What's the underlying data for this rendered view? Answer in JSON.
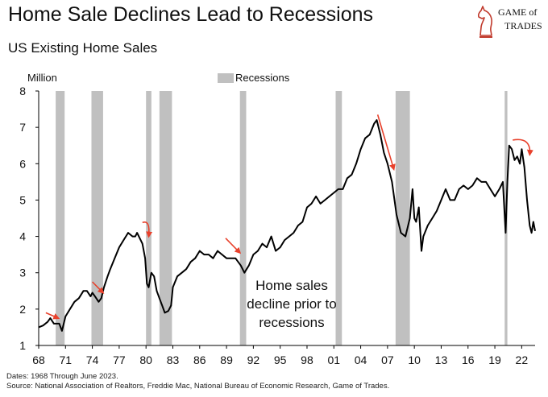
{
  "header": {
    "title": "Home Sale Declines Lead to Recessions",
    "subtitle": "US Existing Home Sales",
    "brand_line1": "GAME of",
    "brand_line2": "TRADES"
  },
  "footer": {
    "dates": "Dates: 1968 Through June 2023.",
    "source": "Source: National Association of Realtors, Freddie Mac, National Bureau of Economic Research, Game of Trades."
  },
  "colors": {
    "line": "#000000",
    "recession": "#c0c0c0",
    "arrow": "#e8412c",
    "brand": "#c0392b"
  },
  "chart_data": {
    "type": "line",
    "title": "Home Sale Declines Lead to Recessions",
    "ylabel": "Million",
    "ylim": [
      1,
      8
    ],
    "yticks": [
      1,
      2,
      3,
      4,
      5,
      6,
      7,
      8
    ],
    "xlim": [
      1968.0,
      2023.5
    ],
    "xticks": [
      1968,
      1971,
      1974,
      1977,
      1980,
      1983,
      1986,
      1989,
      1992,
      1995,
      1998,
      2001,
      2004,
      2007,
      2010,
      2013,
      2016,
      2019,
      2022
    ],
    "xtick_labels": [
      "68",
      "71",
      "74",
      "77",
      "80",
      "83",
      "86",
      "89",
      "92",
      "95",
      "98",
      "01",
      "04",
      "07",
      "10",
      "13",
      "16",
      "19",
      "22"
    ],
    "legend": {
      "label": "Recessions",
      "placement": "top-center"
    },
    "annotation": {
      "lines": [
        "Home sales",
        "decline prior to",
        "recessions"
      ]
    },
    "recessions": [
      [
        1969.9,
        1970.9
      ],
      [
        1973.9,
        1975.2
      ],
      [
        1980.0,
        1980.6
      ],
      [
        1981.5,
        1982.9
      ],
      [
        1990.5,
        1991.2
      ],
      [
        2001.2,
        2001.9
      ],
      [
        2007.9,
        2009.5
      ],
      [
        2020.1,
        2020.4
      ]
    ],
    "series": [
      {
        "name": "US Existing Home Sales",
        "x": [
          1968.0,
          1968.5,
          1969.0,
          1969.3,
          1969.7,
          1970.0,
          1970.3,
          1970.6,
          1971.0,
          1971.5,
          1972.0,
          1972.5,
          1973.0,
          1973.4,
          1973.8,
          1974.0,
          1974.3,
          1974.7,
          1975.0,
          1975.3,
          1975.7,
          1976.0,
          1976.5,
          1977.0,
          1977.5,
          1978.0,
          1978.5,
          1978.8,
          1979.0,
          1979.3,
          1979.6,
          1979.9,
          1980.1,
          1980.3,
          1980.6,
          1980.9,
          1981.2,
          1981.5,
          1981.8,
          1982.1,
          1982.5,
          1982.8,
          1983.0,
          1983.5,
          1984.0,
          1984.5,
          1985.0,
          1985.5,
          1986.0,
          1986.5,
          1987.0,
          1987.5,
          1988.0,
          1988.5,
          1989.0,
          1989.5,
          1990.0,
          1990.3,
          1990.6,
          1991.0,
          1991.5,
          1992.0,
          1992.5,
          1993.0,
          1993.5,
          1994.0,
          1994.5,
          1995.0,
          1995.5,
          1996.0,
          1996.5,
          1997.0,
          1997.5,
          1998.0,
          1998.5,
          1999.0,
          1999.5,
          2000.0,
          2000.5,
          2001.0,
          2001.5,
          2002.0,
          2002.5,
          2003.0,
          2003.5,
          2004.0,
          2004.5,
          2005.0,
          2005.5,
          2005.8,
          2006.2,
          2006.6,
          2007.0,
          2007.5,
          2008.0,
          2008.5,
          2009.0,
          2009.5,
          2009.8,
          2010.0,
          2010.2,
          2010.5,
          2010.8,
          2011.0,
          2011.5,
          2012.0,
          2012.5,
          2013.0,
          2013.5,
          2014.0,
          2014.5,
          2015.0,
          2015.5,
          2016.0,
          2016.5,
          2017.0,
          2017.5,
          2018.0,
          2018.5,
          2019.0,
          2019.5,
          2019.9,
          2020.2,
          2020.4,
          2020.6,
          2020.9,
          2021.2,
          2021.5,
          2021.8,
          2022.0,
          2022.3,
          2022.6,
          2022.9,
          2023.1,
          2023.3,
          2023.5
        ],
        "values": [
          1.5,
          1.55,
          1.65,
          1.75,
          1.6,
          1.6,
          1.6,
          1.4,
          1.8,
          2.0,
          2.2,
          2.3,
          2.5,
          2.5,
          2.35,
          2.45,
          2.35,
          2.2,
          2.3,
          2.6,
          2.9,
          3.1,
          3.4,
          3.7,
          3.9,
          4.1,
          4.0,
          4.0,
          4.1,
          3.95,
          3.8,
          3.4,
          2.7,
          2.6,
          3.0,
          2.9,
          2.5,
          2.3,
          2.1,
          1.9,
          1.95,
          2.1,
          2.6,
          2.9,
          3.0,
          3.1,
          3.3,
          3.4,
          3.6,
          3.5,
          3.5,
          3.4,
          3.6,
          3.5,
          3.4,
          3.4,
          3.4,
          3.3,
          3.2,
          3.0,
          3.2,
          3.5,
          3.6,
          3.8,
          3.7,
          4.0,
          3.6,
          3.7,
          3.9,
          4.0,
          4.1,
          4.3,
          4.4,
          4.8,
          4.9,
          5.1,
          4.9,
          5.0,
          5.1,
          5.2,
          5.3,
          5.3,
          5.6,
          5.7,
          6.0,
          6.4,
          6.7,
          6.8,
          7.1,
          7.2,
          6.8,
          6.3,
          6.0,
          5.5,
          4.6,
          4.1,
          4.0,
          4.5,
          5.3,
          4.5,
          4.4,
          4.8,
          3.6,
          4.0,
          4.3,
          4.5,
          4.7,
          5.0,
          5.3,
          5.0,
          5.0,
          5.3,
          5.4,
          5.3,
          5.4,
          5.6,
          5.5,
          5.5,
          5.3,
          5.1,
          5.3,
          5.5,
          4.1,
          5.5,
          6.5,
          6.4,
          6.1,
          6.2,
          6.0,
          6.4,
          5.9,
          5.0,
          4.3,
          4.1,
          4.4,
          4.15
        ]
      }
    ],
    "arrows": [
      {
        "from": [
          1968.8,
          1.9
        ],
        "to": [
          1970.2,
          1.75
        ]
      },
      {
        "from": [
          1974.0,
          2.75
        ],
        "to": [
          1975.2,
          2.45
        ]
      },
      {
        "from": [
          1979.6,
          4.38
        ],
        "to": [
          1980.3,
          4.0
        ],
        "curved": true
      },
      {
        "from": [
          1988.9,
          3.95
        ],
        "to": [
          1990.5,
          3.55
        ]
      },
      {
        "from": [
          2005.9,
          7.35
        ],
        "to": [
          2007.7,
          5.85
        ]
      },
      {
        "from": [
          2021.0,
          6.65
        ],
        "to": [
          2022.9,
          6.25
        ],
        "curved": true
      }
    ]
  }
}
